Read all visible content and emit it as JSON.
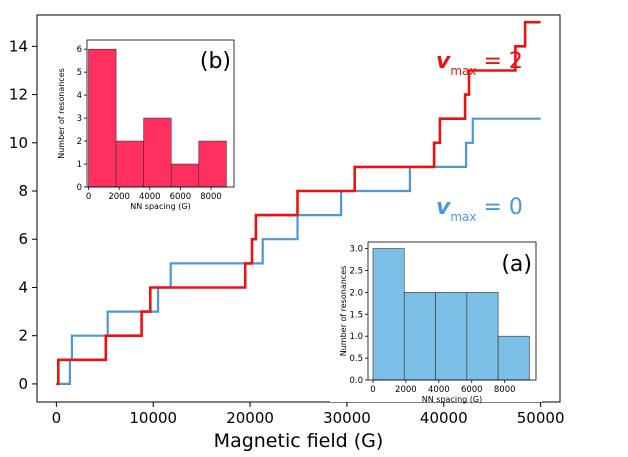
{
  "chart_data": {
    "main": {
      "type": "line",
      "xlabel": "Magnetic field (G)",
      "ylabel": "",
      "xlim": [
        -2000,
        52000
      ],
      "ylim": [
        -0.75,
        15.3
      ],
      "xticks": [
        0,
        10000,
        20000,
        30000,
        40000,
        50000
      ],
      "xtick_labels": [
        "0",
        "10000",
        "20000",
        "30000",
        "40000",
        "50000"
      ],
      "yticks": [
        0,
        2,
        4,
        6,
        8,
        10,
        12,
        14
      ],
      "ytick_labels": [
        "0",
        "2",
        "4",
        "6",
        "8",
        "10",
        "12",
        "14"
      ],
      "series": [
        {
          "name": "v_max = 0",
          "label_main": "v",
          "label_sub": "max",
          "label_rest": " = 0",
          "color": "#4a98d8",
          "steps": [
            [
              0,
              0
            ],
            [
              1400,
              1
            ],
            [
              1600,
              2
            ],
            [
              5300,
              3
            ],
            [
              10500,
              4
            ],
            [
              11800,
              5
            ],
            [
              21300,
              6
            ],
            [
              24900,
              7
            ],
            [
              29400,
              8
            ],
            [
              36500,
              9
            ],
            [
              42300,
              10
            ],
            [
              43000,
              11
            ],
            [
              50000,
              11
            ]
          ]
        },
        {
          "name": "v_max = 2",
          "label_main": "v",
          "label_sub": "max",
          "label_rest": " = 2",
          "color": "#ee1111",
          "steps": [
            [
              0,
              0
            ],
            [
              200,
              1
            ],
            [
              5100,
              2
            ],
            [
              8800,
              3
            ],
            [
              9700,
              4
            ],
            [
              19500,
              5
            ],
            [
              20200,
              6
            ],
            [
              20600,
              7
            ],
            [
              24900,
              8
            ],
            [
              30800,
              9
            ],
            [
              39000,
              10
            ],
            [
              39600,
              11
            ],
            [
              42200,
              12
            ],
            [
              42600,
              13
            ],
            [
              47400,
              14
            ],
            [
              48400,
              15
            ],
            [
              50000,
              15
            ]
          ]
        }
      ]
    },
    "inset_b": {
      "type": "bar",
      "panel_label": "(b)",
      "xlabel": "NN spacing (G)",
      "ylabel": "Number of resonances",
      "bin_edges": [
        0,
        1800,
        3600,
        5400,
        7200,
        9000
      ],
      "values": [
        6,
        2,
        3,
        1,
        2
      ],
      "xlim": [
        -100,
        9500
      ],
      "ylim": [
        0,
        6.4
      ],
      "xticks": [
        0,
        2000,
        4000,
        6000,
        8000
      ],
      "xtick_labels": [
        "0",
        "2000",
        "4000",
        "6000",
        "8000"
      ],
      "yticks": [
        0,
        1,
        2,
        3,
        4,
        5,
        6
      ],
      "ytick_labels": [
        "0",
        "1",
        "2",
        "3",
        "4",
        "5",
        "6"
      ],
      "color": "#ff3060"
    },
    "inset_a": {
      "type": "bar",
      "panel_label": "(a)",
      "xlabel": "NN spacing (G)",
      "ylabel": "Number of resonances",
      "bin_edges": [
        0,
        1900,
        3800,
        5700,
        7600,
        9500
      ],
      "values": [
        3,
        2,
        2,
        2,
        1
      ],
      "xlim": [
        -300,
        9900
      ],
      "ylim": [
        0,
        3.15
      ],
      "xticks": [
        0,
        2000,
        4000,
        6000,
        8000
      ],
      "xtick_labels": [
        "0",
        "2000",
        "4000",
        "6000",
        "8000"
      ],
      "yticks": [
        0,
        0.5,
        1,
        1.5,
        2,
        2.5,
        3
      ],
      "ytick_labels": [
        "0.0",
        "0.5",
        "1.0",
        "1.5",
        "2.0",
        "2.5",
        "3.0"
      ],
      "color": "#7cbfe6"
    }
  }
}
